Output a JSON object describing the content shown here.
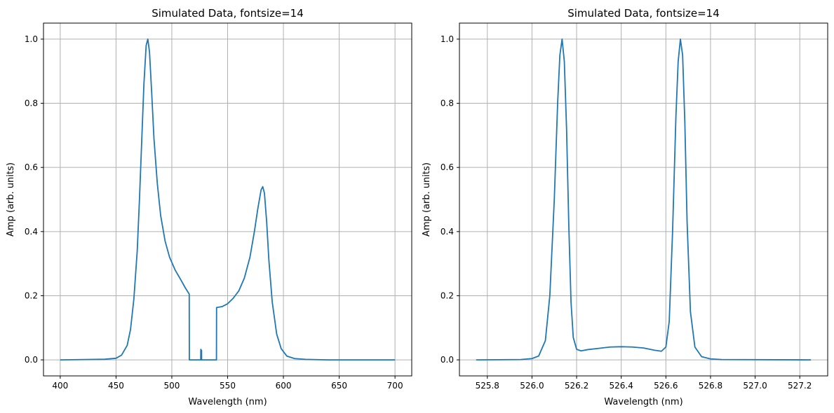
{
  "chart_data": [
    {
      "type": "line",
      "title": "Simulated Data, fontsize=14",
      "xlabel": "Wavelength (nm)",
      "ylabel": "Amp (arb. units)",
      "xlim": [
        385,
        715
      ],
      "ylim": [
        -0.05,
        1.05
      ],
      "xticks": [
        400,
        450,
        500,
        550,
        600,
        650,
        700
      ],
      "xtick_labels": [
        "400",
        "450",
        "500",
        "550",
        "600",
        "650",
        "700"
      ],
      "yticks": [
        0.0,
        0.2,
        0.4,
        0.6,
        0.8,
        1.0
      ],
      "ytick_labels": [
        "0.0",
        "0.2",
        "0.4",
        "0.6",
        "0.8",
        "1.0"
      ],
      "grid": true,
      "series": [
        {
          "color": "#1f77b4",
          "x": [
            400,
            440,
            450,
            455,
            460,
            463,
            466,
            469,
            471,
            473,
            475,
            477,
            478.5,
            480,
            482,
            484,
            487,
            490,
            494,
            498,
            503,
            508,
            512,
            515.6,
            515.7,
            525.9,
            526,
            526.05,
            526.15,
            526.25,
            526.4,
            526.55,
            526.65,
            526.7,
            526.8,
            526.9,
            540,
            540.1,
            545,
            550,
            555,
            560,
            565,
            570,
            574,
            577,
            580,
            581.5,
            583,
            585,
            587,
            590,
            594,
            598,
            603,
            610,
            620,
            640,
            700
          ],
          "y": [
            0.0,
            0.002,
            0.005,
            0.015,
            0.045,
            0.095,
            0.19,
            0.34,
            0.5,
            0.68,
            0.86,
            0.98,
            1.0,
            0.96,
            0.83,
            0.69,
            0.55,
            0.45,
            0.37,
            0.32,
            0.28,
            0.25,
            0.225,
            0.205,
            0.0,
            0.0,
            0.033,
            0.0,
            0.0,
            0.03,
            0.01,
            0.0,
            0.03,
            0.0,
            0.0,
            0.0,
            0.0,
            0.163,
            0.166,
            0.175,
            0.192,
            0.215,
            0.255,
            0.32,
            0.4,
            0.47,
            0.53,
            0.54,
            0.52,
            0.43,
            0.31,
            0.18,
            0.08,
            0.035,
            0.012,
            0.004,
            0.0015,
            0.0,
            0.0
          ]
        }
      ]
    },
    {
      "type": "line",
      "title": "Simulated Data, fontsize=14",
      "xlabel": "Wavelength (nm)",
      "ylabel": "Amp (arb. units)",
      "xlim": [
        525.675,
        527.325
      ],
      "ylim": [
        -0.05,
        1.05
      ],
      "xticks": [
        525.8,
        526.0,
        526.2,
        526.4,
        526.6,
        526.8,
        527.0,
        527.2
      ],
      "xtick_labels": [
        "525.8",
        "526.0",
        "526.2",
        "526.4",
        "526.6",
        "526.8",
        "527.0",
        "527.2"
      ],
      "yticks": [
        0.0,
        0.2,
        0.4,
        0.6,
        0.8,
        1.0
      ],
      "ytick_labels": [
        "0.0",
        "0.2",
        "0.4",
        "0.6",
        "0.8",
        "1.0"
      ],
      "grid": true,
      "series": [
        {
          "color": "#1f77b4",
          "x": [
            525.75,
            525.95,
            526.0,
            526.03,
            526.06,
            526.08,
            526.1,
            526.115,
            526.125,
            526.135,
            526.145,
            526.155,
            526.165,
            526.175,
            526.185,
            526.2,
            526.22,
            526.25,
            526.3,
            526.35,
            526.4,
            526.45,
            526.5,
            526.55,
            526.58,
            526.6,
            526.615,
            526.63,
            526.645,
            526.655,
            526.665,
            526.675,
            526.685,
            526.695,
            526.71,
            526.73,
            526.76,
            526.8,
            526.85,
            527.25
          ],
          "y": [
            0.0,
            0.001,
            0.004,
            0.012,
            0.06,
            0.2,
            0.5,
            0.8,
            0.95,
            1.0,
            0.93,
            0.72,
            0.42,
            0.18,
            0.07,
            0.033,
            0.028,
            0.032,
            0.036,
            0.04,
            0.041,
            0.04,
            0.037,
            0.03,
            0.027,
            0.04,
            0.12,
            0.4,
            0.76,
            0.93,
            1.0,
            0.95,
            0.74,
            0.43,
            0.15,
            0.04,
            0.01,
            0.003,
            0.001,
            0.0
          ]
        }
      ]
    }
  ]
}
